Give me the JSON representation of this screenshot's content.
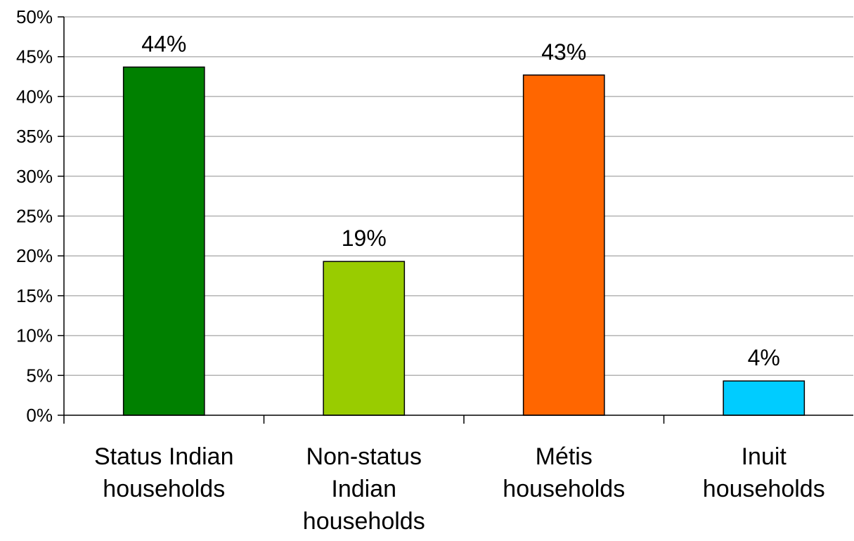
{
  "chart_data": {
    "type": "bar",
    "categories": [
      [
        "Status Indian",
        "households"
      ],
      [
        "Non-status",
        "Indian",
        "households"
      ],
      [
        "Métis",
        "households"
      ],
      [
        "Inuit",
        "households"
      ]
    ],
    "values": [
      43.7,
      19.3,
      42.7,
      4.3
    ],
    "data_labels": [
      "44%",
      "19%",
      "43%",
      "4%"
    ],
    "bar_colors": [
      "#008000",
      "#99cc00",
      "#ff6600",
      "#00ccff"
    ],
    "ylim": [
      0,
      50
    ],
    "yticks": [
      0,
      5,
      10,
      15,
      20,
      25,
      30,
      35,
      40,
      45,
      50
    ],
    "ytick_labels": [
      "0%",
      "5%",
      "10%",
      "15%",
      "20%",
      "25%",
      "30%",
      "35%",
      "40%",
      "45%",
      "50%"
    ],
    "grid": true,
    "legend": "none",
    "title": "",
    "xlabel": "",
    "ylabel": ""
  }
}
